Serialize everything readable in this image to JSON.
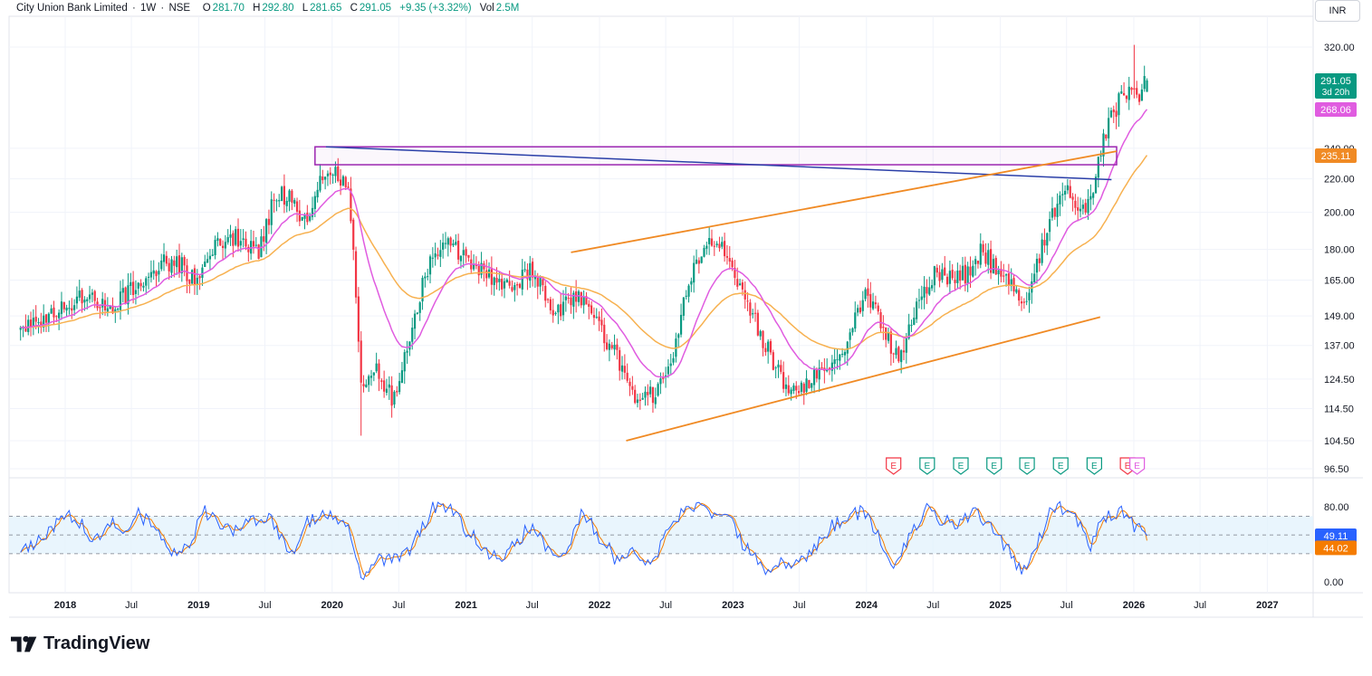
{
  "header": {
    "symbol": "City Union Bank Limited",
    "interval": "1W",
    "exchange": "NSE",
    "o_label": "O",
    "o_value": "281.70",
    "h_label": "H",
    "h_value": "292.80",
    "l_label": "L",
    "l_value": "281.65",
    "c_label": "C",
    "c_value": "291.05",
    "change": "+9.35 (+3.32%)",
    "vol_label": "Vol",
    "vol_value": "2.5M"
  },
  "currency_button": "INR",
  "brand": "TradingView",
  "colors": {
    "up": "#089981",
    "down": "#f23645",
    "ema_fast": "#e05ce0",
    "ema_slow": "#f7b150",
    "channel_line": "#f08a24",
    "resistance_box": "#9c27b0",
    "trendline": "#2a3fa8",
    "rsi_line": "#2962ff",
    "rsi_signal": "#f57c00",
    "rsi_band": "#e3f2fd"
  },
  "chart_data": [
    {
      "type": "candlestick",
      "title": "City Union Bank Limited · 1W · NSE",
      "y_scale": "log",
      "ylim": [
        93,
        330
      ],
      "y_ticks": [
        "320.00",
        "291.05",
        "268.06",
        "240.00",
        "235.11",
        "220.00",
        "200.00",
        "180.00",
        "165.00",
        "149.00",
        "137.00",
        "124.50",
        "114.50",
        "104.50",
        "96.50"
      ],
      "x_ticks": [
        "2018",
        "Jul",
        "2019",
        "Jul",
        "2020",
        "Jul",
        "2021",
        "Jul",
        "2022",
        "Jul",
        "2023",
        "Jul",
        "2024",
        "Jul",
        "2025",
        "Jul",
        "2026",
        "Jul",
        "2027"
      ],
      "price_anchors": [
        [
          "2017-09-01",
          143
        ],
        [
          "2017-12-01",
          150
        ],
        [
          "2018-02-15",
          158
        ],
        [
          "2018-05-01",
          152
        ],
        [
          "2018-07-15",
          162
        ],
        [
          "2018-09-15",
          172
        ],
        [
          "2018-11-01",
          175
        ],
        [
          "2018-12-20",
          164
        ],
        [
          "2019-02-15",
          183
        ],
        [
          "2019-04-15",
          186
        ],
        [
          "2019-06-15",
          180
        ],
        [
          "2019-08-01",
          212
        ],
        [
          "2019-09-15",
          208
        ],
        [
          "2019-10-15",
          193
        ],
        [
          "2019-12-01",
          218
        ],
        [
          "2020-01-01",
          225
        ],
        [
          "2020-02-15",
          214
        ],
        [
          "2020-03-20",
          120
        ],
        [
          "2020-05-01",
          128
        ],
        [
          "2020-06-15",
          118
        ],
        [
          "2020-08-01",
          140
        ],
        [
          "2020-10-01",
          180
        ],
        [
          "2020-11-15",
          183
        ],
        [
          "2021-01-01",
          176
        ],
        [
          "2021-03-15",
          165
        ],
        [
          "2021-05-01",
          160
        ],
        [
          "2021-07-01",
          171
        ],
        [
          "2021-09-01",
          148
        ],
        [
          "2021-11-01",
          160
        ],
        [
          "2022-01-15",
          140
        ],
        [
          "2022-03-01",
          130
        ],
        [
          "2022-04-15",
          115
        ],
        [
          "2022-06-01",
          120
        ],
        [
          "2022-07-15",
          128
        ],
        [
          "2022-09-01",
          165
        ],
        [
          "2022-10-15",
          180
        ],
        [
          "2022-12-01",
          185
        ],
        [
          "2023-01-15",
          162
        ],
        [
          "2023-03-01",
          147
        ],
        [
          "2023-05-01",
          127
        ],
        [
          "2023-06-15",
          120
        ],
        [
          "2023-08-01",
          125
        ],
        [
          "2023-09-15",
          128
        ],
        [
          "2023-11-01",
          135
        ],
        [
          "2024-01-01",
          160
        ],
        [
          "2024-02-15",
          144
        ],
        [
          "2024-04-01",
          130
        ],
        [
          "2024-05-15",
          152
        ],
        [
          "2024-07-01",
          168
        ],
        [
          "2024-08-15",
          165
        ],
        [
          "2024-10-01",
          168
        ],
        [
          "2024-11-15",
          180
        ],
        [
          "2024-12-15",
          170
        ],
        [
          "2025-02-01",
          164
        ],
        [
          "2025-03-01",
          150
        ],
        [
          "2025-04-01",
          166
        ],
        [
          "2025-05-15",
          195
        ],
        [
          "2025-07-01",
          213
        ],
        [
          "2025-08-15",
          202
        ],
        [
          "2025-09-15",
          215
        ],
        [
          "2025-10-15",
          252
        ],
        [
          "2025-11-15",
          270
        ],
        [
          "2025-12-20",
          288
        ],
        [
          "2026-01-15",
          278
        ],
        [
          "2026-02-01",
          298
        ],
        [
          "2026-02-10",
          291.05
        ]
      ],
      "last_candle": {
        "open": 281.7,
        "high": 292.8,
        "low": 281.65,
        "close": 291.05
      },
      "price_labels": [
        {
          "value": 291.05,
          "text": "291.05",
          "sub": "3d 20h",
          "color": "#089981"
        },
        {
          "value": 268.06,
          "text": "268.06",
          "color": "#e05ce0"
        },
        {
          "value": 235.11,
          "text": "235.11",
          "color": "#f08a24"
        }
      ],
      "drawings": {
        "resistance_box": {
          "x0": "2019-11-15",
          "x1": "2025-11-15",
          "y_top": 241,
          "y_bottom": 229
        },
        "trendline": {
          "x0": "2019-12-15",
          "y0": 241,
          "x1": "2025-11-01",
          "y1": 219.5
        },
        "channel_upper": {
          "x0": "2021-10-15",
          "y0": 178.5,
          "x1": "2025-11-15",
          "y1": 238
        },
        "channel_lower": {
          "x0": "2022-03-15",
          "y0": 104.5,
          "x1": "2025-10-01",
          "y1": 148.5
        }
      },
      "event_markers": [
        {
          "date": "2024-03-15",
          "label": "E",
          "color": "#f23645"
        },
        {
          "date": "2024-06-15",
          "label": "E",
          "color": "#089981"
        },
        {
          "date": "2024-09-15",
          "label": "E",
          "color": "#089981"
        },
        {
          "date": "2024-12-15",
          "label": "E",
          "color": "#089981"
        },
        {
          "date": "2025-03-15",
          "label": "E",
          "color": "#089981"
        },
        {
          "date": "2025-06-15",
          "label": "E",
          "color": "#089981"
        },
        {
          "date": "2025-09-15",
          "label": "E",
          "color": "#089981"
        },
        {
          "date": "2025-12-15",
          "label": "E",
          "color": "#f23645"
        },
        {
          "date": "2026-01-10",
          "label": "E",
          "color": "#e05ce0"
        }
      ]
    },
    {
      "type": "line",
      "title": "RSI",
      "ylim": [
        -3,
        92
      ],
      "y_ticks": [
        "80.00",
        "0.00"
      ],
      "band": [
        30,
        70
      ],
      "mid": 50,
      "rsi_last": "49.11",
      "signal_last": "44.02",
      "rsi_anchors": [
        [
          "2017-09-01",
          30
        ],
        [
          "2017-11-01",
          44
        ],
        [
          "2018-01-01",
          75
        ],
        [
          "2018-02-15",
          62
        ],
        [
          "2018-03-15",
          38
        ],
        [
          "2018-05-01",
          68
        ],
        [
          "2018-06-15",
          48
        ],
        [
          "2018-07-15",
          75
        ],
        [
          "2018-09-01",
          58
        ],
        [
          "2018-10-15",
          28
        ],
        [
          "2018-12-01",
          36
        ],
        [
          "2019-01-15",
          77
        ],
        [
          "2019-03-01",
          62
        ],
        [
          "2019-04-15",
          52
        ],
        [
          "2019-06-01",
          66
        ],
        [
          "2019-07-15",
          73
        ],
        [
          "2019-08-15",
          45
        ],
        [
          "2019-09-15",
          33
        ],
        [
          "2019-10-15",
          62
        ],
        [
          "2019-12-01",
          73
        ],
        [
          "2020-01-15",
          70
        ],
        [
          "2020-02-15",
          55
        ],
        [
          "2020-03-20",
          3
        ],
        [
          "2020-05-01",
          24
        ],
        [
          "2020-06-15",
          23
        ],
        [
          "2020-08-01",
          36
        ],
        [
          "2020-10-01",
          78
        ],
        [
          "2020-11-15",
          80
        ],
        [
          "2021-01-01",
          55
        ],
        [
          "2021-02-15",
          40
        ],
        [
          "2021-04-01",
          20
        ],
        [
          "2021-05-15",
          42
        ],
        [
          "2021-07-01",
          60
        ],
        [
          "2021-08-15",
          30
        ],
        [
          "2021-10-01",
          36
        ],
        [
          "2021-11-15",
          75
        ],
        [
          "2022-01-01",
          48
        ],
        [
          "2022-02-15",
          24
        ],
        [
          "2022-04-01",
          38
        ],
        [
          "2022-05-15",
          16
        ],
        [
          "2022-06-15",
          35
        ],
        [
          "2022-08-01",
          70
        ],
        [
          "2022-09-15",
          80
        ],
        [
          "2022-11-01",
          74
        ],
        [
          "2022-12-15",
          78
        ],
        [
          "2023-01-15",
          48
        ],
        [
          "2023-02-15",
          30
        ],
        [
          "2023-04-01",
          14
        ],
        [
          "2023-05-15",
          22
        ],
        [
          "2023-07-01",
          20
        ],
        [
          "2023-08-15",
          38
        ],
        [
          "2023-10-01",
          60
        ],
        [
          "2023-11-15",
          72
        ],
        [
          "2024-01-01",
          74
        ],
        [
          "2024-02-01",
          48
        ],
        [
          "2024-03-15",
          20
        ],
        [
          "2024-05-01",
          48
        ],
        [
          "2024-06-15",
          78
        ],
        [
          "2024-07-15",
          66
        ],
        [
          "2024-09-01",
          60
        ],
        [
          "2024-10-15",
          74
        ],
        [
          "2024-12-01",
          64
        ],
        [
          "2025-01-15",
          38
        ],
        [
          "2025-03-01",
          12
        ],
        [
          "2025-04-15",
          45
        ],
        [
          "2025-05-15",
          72
        ],
        [
          "2025-06-15",
          78
        ],
        [
          "2025-08-01",
          65
        ],
        [
          "2025-09-01",
          35
        ],
        [
          "2025-10-15",
          70
        ],
        [
          "2025-12-01",
          78
        ],
        [
          "2026-01-10",
          56
        ],
        [
          "2026-02-10",
          49.11
        ]
      ]
    }
  ]
}
